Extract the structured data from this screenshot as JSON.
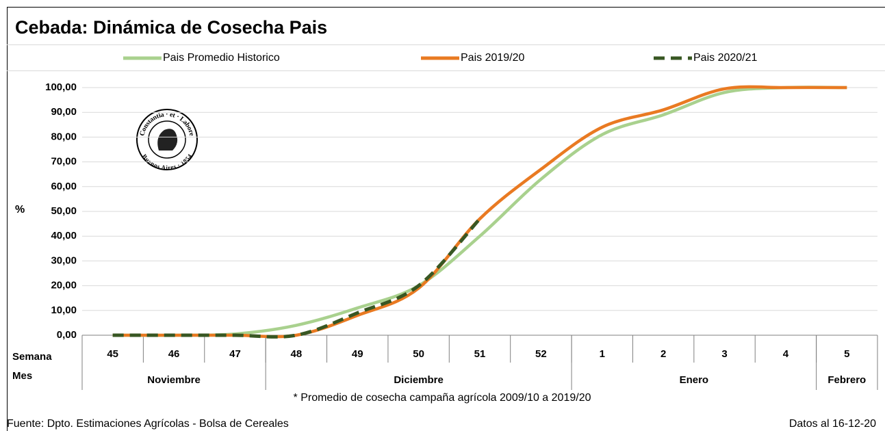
{
  "chart_data": {
    "type": "line",
    "title": "Cebada: Dinámica de Cosecha Pais",
    "y_label": "%",
    "row_labels": [
      "Semana",
      "Mes"
    ],
    "categories": [
      "45",
      "46",
      "47",
      "48",
      "49",
      "50",
      "51",
      "52",
      "1",
      "2",
      "3",
      "4",
      "5"
    ],
    "months": [
      "Noviembre",
      "Diciembre",
      "Enero",
      "Febrero"
    ],
    "series": [
      {
        "name": "Pais Promedio Historico",
        "color": "#a9d18e",
        "dashed": false,
        "values": [
          0,
          0,
          0.5,
          4,
          11,
          20,
          40,
          63,
          81,
          89,
          98,
          100,
          100
        ]
      },
      {
        "name": "Pais 2019/20",
        "color": "#e97a22",
        "dashed": false,
        "values": [
          0,
          0,
          0,
          0,
          8,
          19,
          47,
          67,
          84,
          91,
          99.5,
          100,
          100
        ]
      },
      {
        "name": "Pais 2020/21",
        "color": "#385723",
        "dashed": true,
        "values": [
          0,
          0,
          0,
          0,
          9,
          20,
          47,
          null,
          null,
          null,
          null,
          null,
          null
        ]
      }
    ],
    "ylim": [
      0,
      100
    ],
    "yticks": [
      {
        "value": 0,
        "label": "0,00"
      },
      {
        "value": 10,
        "label": "10,00"
      },
      {
        "value": 20,
        "label": "20,00"
      },
      {
        "value": 30,
        "label": "30,00"
      },
      {
        "value": 40,
        "label": "40,00"
      },
      {
        "value": 50,
        "label": "50,00"
      },
      {
        "value": 60,
        "label": "60,00"
      },
      {
        "value": 70,
        "label": "70,00"
      },
      {
        "value": 80,
        "label": "80,00"
      },
      {
        "value": 90,
        "label": "90,00"
      },
      {
        "value": 100,
        "label": "100,00"
      }
    ],
    "grid": true,
    "footnote": "* Promedio de cosecha campaña agrícola 2009/10  a 2019/20",
    "source": "Fuente: Dpto. Estimaciones Agrícolas - Bolsa de Cereales",
    "date_note": "Datos al 16-12-20",
    "logo": {
      "top": "Constantia · et · Labore",
      "bottom": "Buenos Aires · 1854"
    }
  }
}
